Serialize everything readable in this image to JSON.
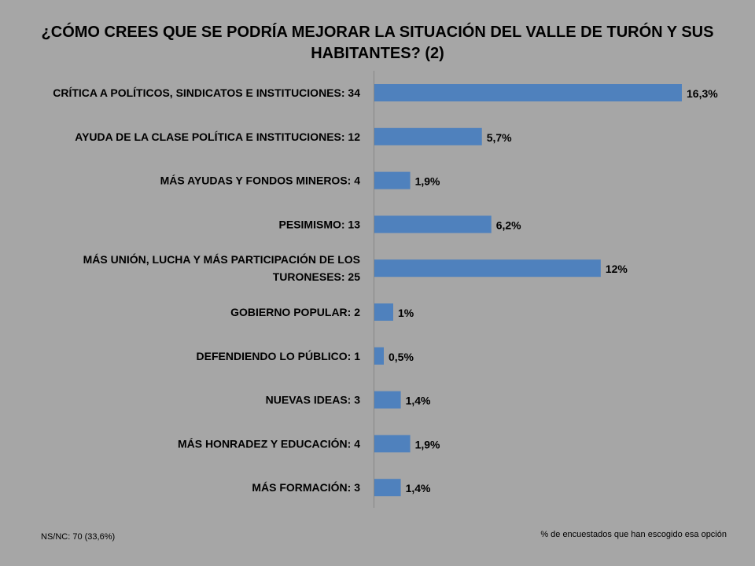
{
  "chart_data": {
    "type": "bar",
    "orientation": "horizontal",
    "title": [
      "¿CÓMO CREES QUE SE PODRÍA MEJORAR LA SITUACIÓN DEL VALLE DE TURÓN Y SUS",
      "HABITANTES? (2)"
    ],
    "categories": [
      [
        "CRÍTICA A POLÍTICOS, SINDICATOS E INSTITUCIONES: 34"
      ],
      [
        "AYUDA DE LA CLASE POLÍTICA E INSTITUCIONES: 12"
      ],
      [
        "MÁS AYUDAS Y FONDOS MINEROS: 4"
      ],
      [
        "PESIMISMO: 13"
      ],
      [
        "MÁS UNIÓN, LUCHA Y MÁS PARTICIPACIÓN DE LOS",
        "TURONESES: 25"
      ],
      [
        "GOBIERNO POPULAR: 2"
      ],
      [
        "DEFENDIENDO LO PÚBLICO: 1"
      ],
      [
        "NUEVAS IDEAS: 3"
      ],
      [
        "MÁS HONRADEZ Y EDUCACIÓN: 4"
      ],
      [
        "MÁS FORMACIÓN: 3"
      ]
    ],
    "values": [
      16.3,
      5.7,
      1.9,
      6.2,
      12,
      1,
      0.5,
      1.4,
      1.9,
      1.4
    ],
    "data_labels": [
      "16,3%",
      "5,7%",
      "1,9%",
      "6,2%",
      "12%",
      "1%",
      "0,5%",
      "1,4%",
      "1,9%",
      "1,4%"
    ],
    "xlim": [
      0,
      16.3
    ],
    "grid": false,
    "bar_color": "#4f81bd",
    "notes": {
      "left": "NS/NC: 70 (33,6%)",
      "right": "% de encuestados que  han  escogido esa opción"
    }
  }
}
